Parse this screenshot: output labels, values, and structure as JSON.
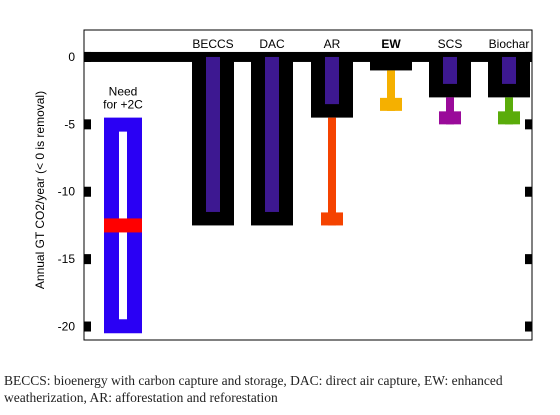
{
  "chart_data": {
    "type": "bar",
    "ylabel": "Annual GT CO2/year (< 0 is removal)",
    "ylim": [
      -21,
      2
    ],
    "yticks": [
      0,
      -5,
      -10,
      -15,
      -20
    ],
    "need": {
      "label_line1": "Need",
      "label_line2": "for +2C",
      "low": -20.5,
      "high": -4.5,
      "mid": -12.5
    },
    "categories": [
      "BECCS",
      "DAC",
      "AR",
      "EW",
      "SCS",
      "Biochar"
    ],
    "bold_categories": [
      "EW"
    ],
    "series": [
      {
        "values": [
          -12.5,
          -12.5,
          -4.5,
          -1,
          -3,
          -3
        ]
      },
      {
        "values": [
          -11.5,
          -11.5,
          -3.5,
          0,
          -2,
          -2
        ]
      },
      {
        "values": [
          null,
          null,
          -12.5,
          -4,
          -5,
          -5
        ]
      }
    ],
    "colors": {
      "frame": "#000000",
      "need_bar": "#2a00f4",
      "need_inner": "#ffffff",
      "need_mid": "#ff0000",
      "inner_bar": "#3d1891",
      "AR": "#f54300",
      "EW": "#f5b000",
      "SCS": "#9a0a9a",
      "Biochar": "#5aac0a"
    }
  },
  "caption": "BECCS: bioenergy with carbon capture and storage, DAC: direct air capture, EW: enhanced weatherization, AR: afforestation and reforestation"
}
